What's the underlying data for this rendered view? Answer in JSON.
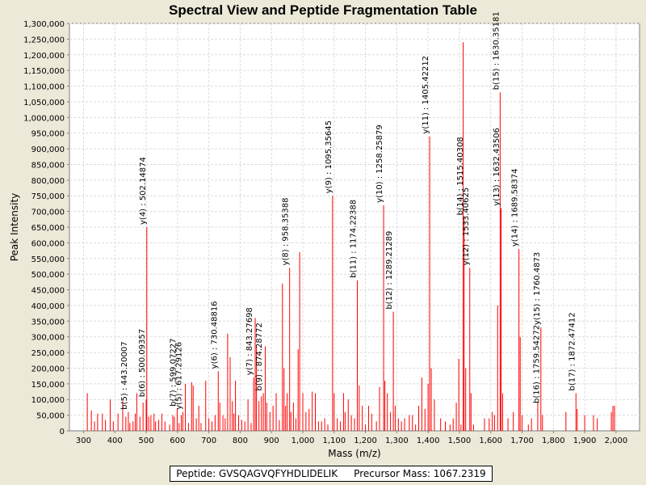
{
  "chart_data": {
    "type": "bar",
    "title": "Spectral View and Peptide Fragmentation Table",
    "xlabel": "Mass (m/z)",
    "ylabel": "Peak Intensity",
    "xlim": [
      255,
      2075
    ],
    "ylim": [
      0,
      1300000
    ],
    "x_ticks": [
      "300",
      "400",
      "500",
      "600",
      "700",
      "800",
      "900",
      "1,000",
      "1,100",
      "1,200",
      "1,300",
      "1,400",
      "1,500",
      "1,600",
      "1,700",
      "1,800",
      "1,900",
      "2,000"
    ],
    "x_tick_values": [
      300,
      400,
      500,
      600,
      700,
      800,
      900,
      1000,
      1100,
      1200,
      1300,
      1400,
      1500,
      1600,
      1700,
      1800,
      1900,
      2000
    ],
    "y_ticks": [
      "0",
      "50,000",
      "100,000",
      "150,000",
      "200,000",
      "250,000",
      "300,000",
      "350,000",
      "400,000",
      "450,000",
      "500,000",
      "550,000",
      "600,000",
      "650,000",
      "700,000",
      "750,000",
      "800,000",
      "850,000",
      "900,000",
      "950,000",
      "1,000,000",
      "1,050,000",
      "1,100,000",
      "1,150,000",
      "1,200,000",
      "1,250,000",
      "1,300,000"
    ],
    "y_tick_values": [
      0,
      50000,
      100000,
      150000,
      200000,
      250000,
      300000,
      350000,
      400000,
      450000,
      500000,
      550000,
      600000,
      650000,
      700000,
      750000,
      800000,
      850000,
      900000,
      950000,
      1000000,
      1050000,
      1100000,
      1150000,
      1200000,
      1250000,
      1300000
    ],
    "grid": true,
    "peak_color": "#ff0000",
    "peaks": [
      [
        312,
        120000
      ],
      [
        325,
        65000
      ],
      [
        335,
        30000
      ],
      [
        345,
        55000
      ],
      [
        360,
        55000
      ],
      [
        370,
        35000
      ],
      [
        385,
        100000
      ],
      [
        395,
        30000
      ],
      [
        410,
        55000
      ],
      [
        425,
        95000
      ],
      [
        435,
        45000
      ],
      [
        443,
        60000
      ],
      [
        448,
        25000
      ],
      [
        458,
        30000
      ],
      [
        465,
        55000
      ],
      [
        470,
        120000
      ],
      [
        480,
        45000
      ],
      [
        490,
        90000
      ],
      [
        500,
        100000
      ],
      [
        502,
        650000
      ],
      [
        508,
        45000
      ],
      [
        515,
        50000
      ],
      [
        525,
        55000
      ],
      [
        530,
        30000
      ],
      [
        540,
        35000
      ],
      [
        550,
        55000
      ],
      [
        560,
        30000
      ],
      [
        575,
        20000
      ],
      [
        585,
        50000
      ],
      [
        590,
        45000
      ],
      [
        599,
        70000
      ],
      [
        605,
        25000
      ],
      [
        612,
        50000
      ],
      [
        617,
        60000
      ],
      [
        625,
        150000
      ],
      [
        635,
        25000
      ],
      [
        645,
        155000
      ],
      [
        650,
        145000
      ],
      [
        660,
        40000
      ],
      [
        668,
        80000
      ],
      [
        675,
        25000
      ],
      [
        690,
        160000
      ],
      [
        700,
        40000
      ],
      [
        710,
        30000
      ],
      [
        720,
        50000
      ],
      [
        730,
        190000
      ],
      [
        735,
        90000
      ],
      [
        745,
        50000
      ],
      [
        752,
        40000
      ],
      [
        760,
        310000
      ],
      [
        768,
        235000
      ],
      [
        775,
        95000
      ],
      [
        780,
        55000
      ],
      [
        785,
        160000
      ],
      [
        795,
        50000
      ],
      [
        805,
        35000
      ],
      [
        815,
        30000
      ],
      [
        825,
        100000
      ],
      [
        835,
        25000
      ],
      [
        843,
        170000
      ],
      [
        848,
        360000
      ],
      [
        852,
        270000
      ],
      [
        860,
        95000
      ],
      [
        868,
        110000
      ],
      [
        874,
        120000
      ],
      [
        880,
        270000
      ],
      [
        885,
        90000
      ],
      [
        895,
        60000
      ],
      [
        905,
        80000
      ],
      [
        915,
        120000
      ],
      [
        925,
        35000
      ],
      [
        935,
        470000
      ],
      [
        940,
        200000
      ],
      [
        945,
        80000
      ],
      [
        950,
        120000
      ],
      [
        958,
        520000
      ],
      [
        962,
        60000
      ],
      [
        970,
        90000
      ],
      [
        978,
        40000
      ],
      [
        985,
        260000
      ],
      [
        990,
        570000
      ],
      [
        1000,
        120000
      ],
      [
        1010,
        60000
      ],
      [
        1020,
        70000
      ],
      [
        1030,
        125000
      ],
      [
        1040,
        120000
      ],
      [
        1050,
        30000
      ],
      [
        1060,
        30000
      ],
      [
        1070,
        40000
      ],
      [
        1080,
        20000
      ],
      [
        1095,
        750000
      ],
      [
        1100,
        120000
      ],
      [
        1110,
        40000
      ],
      [
        1120,
        30000
      ],
      [
        1130,
        120000
      ],
      [
        1135,
        60000
      ],
      [
        1145,
        100000
      ],
      [
        1155,
        50000
      ],
      [
        1165,
        40000
      ],
      [
        1174,
        480000
      ],
      [
        1180,
        145000
      ],
      [
        1190,
        80000
      ],
      [
        1200,
        20000
      ],
      [
        1210,
        80000
      ],
      [
        1220,
        55000
      ],
      [
        1235,
        30000
      ],
      [
        1245,
        140000
      ],
      [
        1258,
        720000
      ],
      [
        1262,
        160000
      ],
      [
        1270,
        120000
      ],
      [
        1280,
        60000
      ],
      [
        1289,
        380000
      ],
      [
        1295,
        80000
      ],
      [
        1305,
        40000
      ],
      [
        1315,
        30000
      ],
      [
        1325,
        40000
      ],
      [
        1340,
        50000
      ],
      [
        1350,
        50000
      ],
      [
        1360,
        20000
      ],
      [
        1370,
        80000
      ],
      [
        1380,
        170000
      ],
      [
        1390,
        70000
      ],
      [
        1400,
        150000
      ],
      [
        1405,
        940000
      ],
      [
        1410,
        200000
      ],
      [
        1420,
        100000
      ],
      [
        1440,
        40000
      ],
      [
        1455,
        30000
      ],
      [
        1470,
        20000
      ],
      [
        1480,
        40000
      ],
      [
        1490,
        90000
      ],
      [
        1498,
        230000
      ],
      [
        1505,
        20000
      ],
      [
        1512,
        1240000
      ],
      [
        1515,
        680000
      ],
      [
        1520,
        200000
      ],
      [
        1533,
        520000
      ],
      [
        1537,
        120000
      ],
      [
        1545,
        20000
      ],
      [
        1580,
        40000
      ],
      [
        1595,
        40000
      ],
      [
        1605,
        60000
      ],
      [
        1612,
        50000
      ],
      [
        1622,
        400000
      ],
      [
        1630,
        1080000
      ],
      [
        1633,
        710000
      ],
      [
        1638,
        120000
      ],
      [
        1655,
        40000
      ],
      [
        1672,
        60000
      ],
      [
        1690,
        580000
      ],
      [
        1694,
        300000
      ],
      [
        1700,
        50000
      ],
      [
        1720,
        20000
      ],
      [
        1730,
        40000
      ],
      [
        1750,
        90000
      ],
      [
        1760,
        330000
      ],
      [
        1765,
        50000
      ],
      [
        1840,
        60000
      ],
      [
        1872,
        120000
      ],
      [
        1876,
        70000
      ],
      [
        1900,
        50000
      ],
      [
        1928,
        50000
      ],
      [
        1940,
        40000
      ],
      [
        1985,
        60000
      ],
      [
        1990,
        80000
      ],
      [
        1995,
        80000
      ]
    ],
    "annotations": [
      {
        "label": "b(5) : 443.20007",
        "x": 443,
        "y": 60000
      },
      {
        "label": "b(6) : 500.09357",
        "x": 500,
        "y": 100000
      },
      {
        "label": "y(4) : 502.14874",
        "x": 502,
        "y": 650000
      },
      {
        "label": "b(7) : 599.07227",
        "x": 599,
        "y": 70000
      },
      {
        "label": "y(5) : 617.29126",
        "x": 617,
        "y": 60000
      },
      {
        "label": "y(6) : 730.48816",
        "x": 730,
        "y": 190000
      },
      {
        "label": "y(7) : 843.27698",
        "x": 843,
        "y": 170000
      },
      {
        "label": "b(9) : 874.28772",
        "x": 874,
        "y": 120000
      },
      {
        "label": "y(8) : 958.35388",
        "x": 958,
        "y": 520000
      },
      {
        "label": "y(9) : 1095.35645",
        "x": 1095,
        "y": 750000
      },
      {
        "label": "b(11) : 1174.22388",
        "x": 1174,
        "y": 480000
      },
      {
        "label": "y(10) : 1258.25879",
        "x": 1258,
        "y": 720000
      },
      {
        "label": "b(12) : 1289.21289",
        "x": 1289,
        "y": 380000
      },
      {
        "label": "y(11) : 1405.42212",
        "x": 1405,
        "y": 940000
      },
      {
        "label": "b(14) : 1515.40308",
        "x": 1515,
        "y": 680000
      },
      {
        "label": "y(12) : 1533.40625",
        "x": 1533,
        "y": 520000
      },
      {
        "label": "b(15) : 1630.35181",
        "x": 1630,
        "y": 1080000
      },
      {
        "label": "y(13) : 1632.43506",
        "x": 1632,
        "y": 710000
      },
      {
        "label": "y(14) : 1689.58374",
        "x": 1690,
        "y": 580000
      },
      {
        "label": "y(15) : 1760.4873",
        "x": 1760,
        "y": 330000
      },
      {
        "label": "b(16) : 1759.54272",
        "x": 1759,
        "y": 80000
      },
      {
        "label": "b(17) : 1872.47412",
        "x": 1872,
        "y": 120000
      }
    ]
  },
  "legend": {
    "peptide": "Peptide: GVSQAGVQFYHDLIDELIK",
    "precursor": "Precursor Mass: 1067.2319"
  }
}
